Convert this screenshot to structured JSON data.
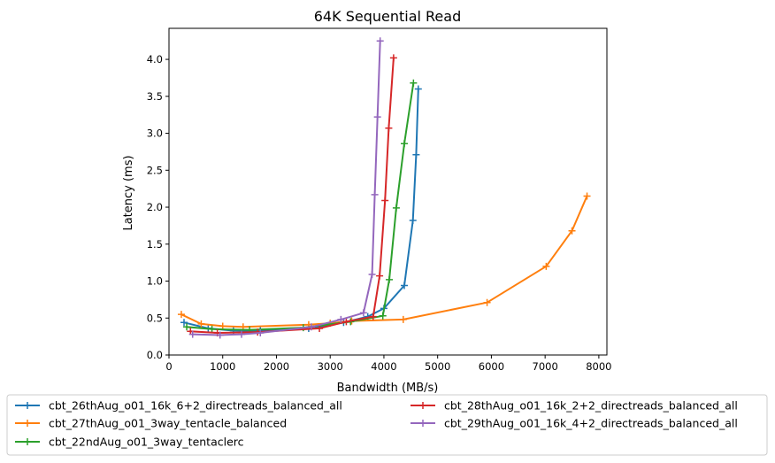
{
  "chart_data": {
    "type": "line",
    "title": "64K  Sequential Read",
    "xlabel": "Bandwidth (MB/s)",
    "ylabel": "Latency (ms)",
    "xlim": [
      0,
      8150
    ],
    "ylim": [
      0,
      4.42
    ],
    "xticks": [
      0,
      1000,
      2000,
      3000,
      4000,
      5000,
      6000,
      7000,
      8000
    ],
    "xtick_labels": [
      "0",
      "1000",
      "2000",
      "3000",
      "4000",
      "5000",
      "6000",
      "7000",
      "8000"
    ],
    "yticks": [
      0.0,
      0.5,
      1.0,
      1.5,
      2.0,
      2.5,
      3.0,
      3.5,
      4.0
    ],
    "ytick_labels": [
      "0.0",
      "0.5",
      "1.0",
      "1.5",
      "2.0",
      "2.5",
      "3.0",
      "3.5",
      "4.0"
    ],
    "grid": false,
    "legend_position": "bottom-center",
    "series": [
      {
        "name": "cbt_26thAug_o01_16k_6+2_directreads_balanced_all",
        "color": "#1f77b4",
        "points": [
          [
            280,
            0.44
          ],
          [
            730,
            0.36
          ],
          [
            1200,
            0.33
          ],
          [
            1700,
            0.33
          ],
          [
            2600,
            0.36
          ],
          [
            3250,
            0.44
          ],
          [
            3700,
            0.52
          ],
          [
            4000,
            0.63
          ],
          [
            4380,
            0.94
          ],
          [
            4540,
            1.82
          ],
          [
            4600,
            2.71
          ],
          [
            4640,
            3.6
          ]
        ]
      },
      {
        "name": "cbt_27thAug_o01_3way_tentacle_balanced",
        "color": "#ff7f0e",
        "points": [
          [
            230,
            0.55
          ],
          [
            600,
            0.42
          ],
          [
            1000,
            0.39
          ],
          [
            1380,
            0.38
          ],
          [
            2600,
            0.41
          ],
          [
            3000,
            0.43
          ],
          [
            3400,
            0.46
          ],
          [
            4360,
            0.48
          ],
          [
            5920,
            0.71
          ],
          [
            7020,
            1.2
          ],
          [
            7500,
            1.68
          ],
          [
            7780,
            2.15
          ]
        ]
      },
      {
        "name": "cbt_22ndAug_o01_3way_tentaclerc",
        "color": "#2ca02c",
        "points": [
          [
            330,
            0.38
          ],
          [
            800,
            0.35
          ],
          [
            1500,
            0.34
          ],
          [
            2500,
            0.37
          ],
          [
            3380,
            0.45
          ],
          [
            3980,
            0.53
          ],
          [
            4100,
            1.02
          ],
          [
            4230,
            1.99
          ],
          [
            4380,
            2.86
          ],
          [
            4550,
            3.68
          ]
        ]
      },
      {
        "name": "cbt_28thAug_o01_16k_2+2_directreads_balanced_all",
        "color": "#d62728",
        "points": [
          [
            400,
            0.32
          ],
          [
            900,
            0.3
          ],
          [
            1650,
            0.31
          ],
          [
            2800,
            0.36
          ],
          [
            3300,
            0.45
          ],
          [
            3800,
            0.52
          ],
          [
            3920,
            1.07
          ],
          [
            4020,
            2.09
          ],
          [
            4090,
            3.07
          ],
          [
            4180,
            4.02
          ]
        ]
      },
      {
        "name": "cbt_29thAug_o01_16k_4+2_directreads_balanced_all",
        "color": "#9467bd",
        "points": [
          [
            440,
            0.28
          ],
          [
            950,
            0.27
          ],
          [
            1350,
            0.28
          ],
          [
            1700,
            0.3
          ],
          [
            2650,
            0.38
          ],
          [
            3200,
            0.48
          ],
          [
            3620,
            0.57
          ],
          [
            3780,
            1.09
          ],
          [
            3830,
            2.17
          ],
          [
            3880,
            3.22
          ],
          [
            3930,
            4.25
          ]
        ]
      }
    ]
  }
}
